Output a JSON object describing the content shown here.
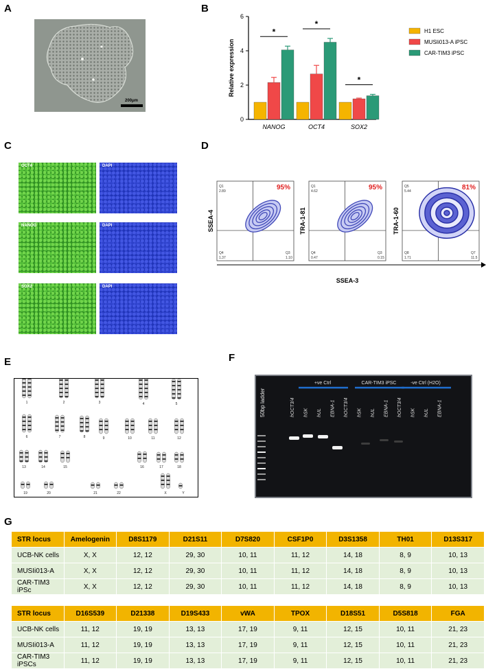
{
  "panels": {
    "a": "A",
    "b": "B",
    "c": "C",
    "d": "D",
    "e": "E",
    "f": "F",
    "g": "G"
  },
  "panel_a": {
    "scale_bar": "200μm"
  },
  "chart_data": {
    "type": "bar",
    "categories": [
      "NANOG",
      "OCT4",
      "SOX2"
    ],
    "series": [
      {
        "name": "H1 ESC",
        "values": [
          1,
          1,
          1
        ],
        "errors": [
          0,
          0,
          0
        ],
        "color": "#f5b400"
      },
      {
        "name": "MUSIi013-A iPSC",
        "values": [
          2.15,
          2.65,
          1.2
        ],
        "errors": [
          0.3,
          0.5,
          0.04
        ],
        "color": "#f04848"
      },
      {
        "name": "CAR-TIM3 iPSC",
        "values": [
          4.05,
          4.5,
          1.38
        ],
        "errors": [
          0.22,
          0.22,
          0.08
        ],
        "color": "#2b9a77"
      }
    ],
    "ylabel": "Relative expression",
    "ylim": [
      0,
      6
    ],
    "yticks": [
      "0",
      "2",
      "4",
      "6"
    ],
    "significance": [
      "*",
      "*",
      "*"
    ],
    "legend_position": "right"
  },
  "panel_c": {
    "labels": [
      "OCT4",
      "DAPI",
      "NANOG",
      "DAPI",
      "SOX2",
      "DAPI"
    ]
  },
  "panel_d": {
    "plots": [
      {
        "ylabel": "SSEA-4",
        "percent": "95%",
        "q_tl_name": "Q1",
        "q_tl": "2.89",
        "q_bl_name": "Q4",
        "q_bl": "1.37",
        "q_br_name": "Q3",
        "q_br": "1.10"
      },
      {
        "ylabel": "TRA-1-81",
        "percent": "95%",
        "q_tl_name": "Q1",
        "q_tl": "4.62",
        "q_bl_name": "Q4",
        "q_bl": "0.47",
        "q_br_name": "Q3",
        "q_br": "0.15"
      },
      {
        "ylabel": "TRA-1-60",
        "percent": "81%",
        "q_tl_name": "Q5",
        "q_tl": "5.44",
        "q_bl_name": "Q8",
        "q_bl": "1.71",
        "q_br_name": "Q7",
        "q_br": "11.5"
      }
    ],
    "xlabel": "SSEA-3"
  },
  "panel_e": {
    "chromosomes": [
      "1",
      "2",
      "3",
      "4",
      "5",
      "6",
      "7",
      "8",
      "9",
      "10",
      "11",
      "12",
      "13",
      "14",
      "15",
      "16",
      "17",
      "18",
      "19",
      "20",
      "21",
      "22",
      "X",
      "Y"
    ]
  },
  "panel_f": {
    "ladder": "50bp ladder",
    "groups": [
      "+ve Ctrl",
      "CAR-TIM3 iPSC",
      "-ve Ctrl (H2O)"
    ],
    "lanes": [
      "hOCT3/4",
      "hSK",
      "hUL",
      "EBNA-1",
      "hOCT3/4",
      "hSK",
      "hUL",
      "EBNA-1",
      "hOCT3/4",
      "hSK",
      "hUL",
      "EBNA-1"
    ]
  },
  "table1": {
    "header": [
      "STR locus",
      "Amelogenin",
      "D8S1179",
      "D21S11",
      "D7S820",
      "CSF1P0",
      "D3S1358",
      "TH01",
      "D13S317"
    ],
    "rows": [
      [
        "UCB-NK cells",
        "X, X",
        "12, 12",
        "29, 30",
        "10, 11",
        "11, 12",
        "14, 18",
        "8, 9",
        "10, 13"
      ],
      [
        "MUSIi013-A",
        "X, X",
        "12, 12",
        "29, 30",
        "10, 11",
        "11, 12",
        "14, 18",
        "8, 9",
        "10, 13"
      ],
      [
        "CAR-TIM3 iPSc",
        "X, X",
        "12, 12",
        "29, 30",
        "10, 11",
        "11, 12",
        "14, 18",
        "8, 9",
        "10, 13"
      ]
    ]
  },
  "table2": {
    "header": [
      "STR locus",
      "D16S539",
      "D21338",
      "D19S433",
      "vWA",
      "TPOX",
      "D18S51",
      "D5S818",
      "FGA"
    ],
    "rows": [
      [
        "UCB-NK cells",
        "11, 12",
        "19, 19",
        "13, 13",
        "17, 19",
        "9, 11",
        "12, 15",
        "10, 11",
        "21, 23"
      ],
      [
        "MUSIi013-A",
        "11, 12",
        "19, 19",
        "13, 13",
        "17, 19",
        "9, 11",
        "12, 15",
        "10, 11",
        "21, 23"
      ],
      [
        "CAR-TIM3 iPSCs",
        "11, 12",
        "19, 19",
        "13, 13",
        "17, 19",
        "9, 11",
        "12, 15",
        "10, 11",
        "21, 23"
      ]
    ]
  }
}
